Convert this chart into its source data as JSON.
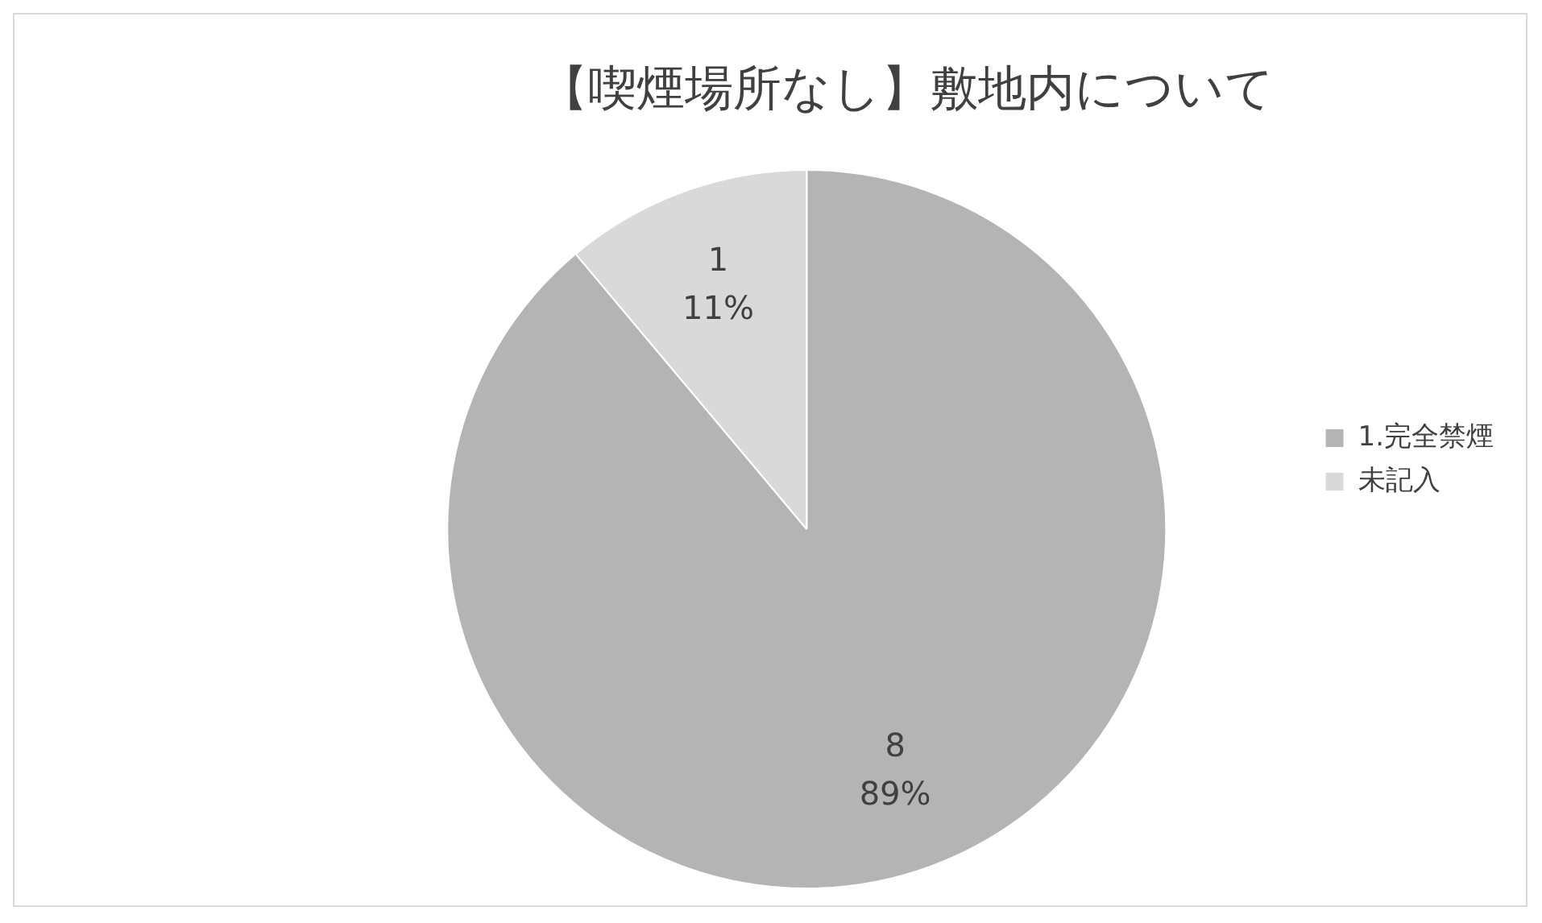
{
  "chart_data": {
    "type": "pie",
    "title": "【喫煙場所なし】敷地内について",
    "categories": [
      "1.完全禁煙",
      "未記入"
    ],
    "values": [
      8,
      1
    ],
    "colors": [
      "#b4b4b4",
      "#d9d9d9"
    ],
    "value_labels": [
      "8\n89%",
      "1\n11%"
    ],
    "legend": "right"
  }
}
